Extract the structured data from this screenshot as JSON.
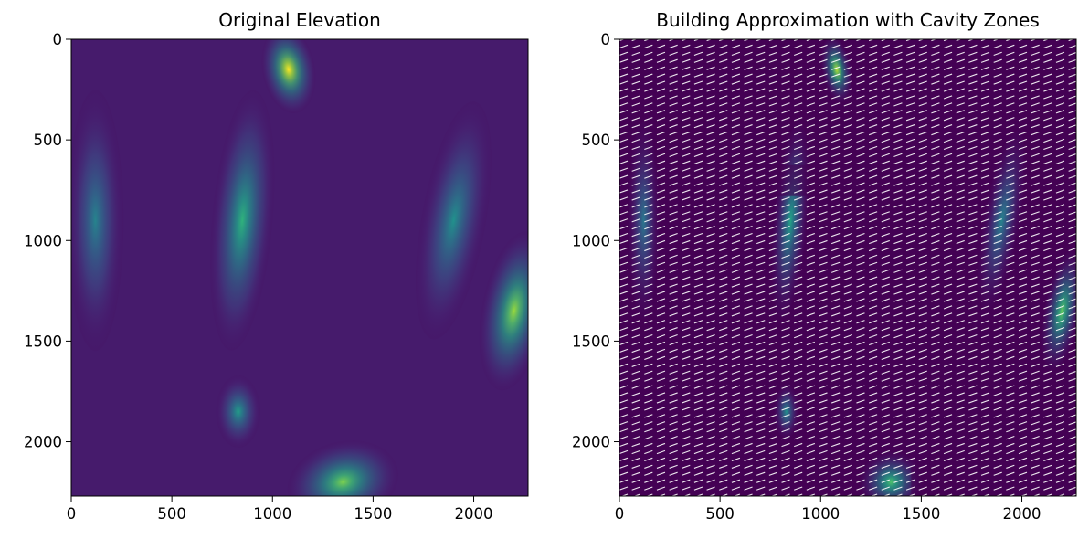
{
  "chart_data": [
    {
      "type": "heatmap",
      "title": "Original Elevation",
      "colormap": "viridis",
      "xlim": [
        0,
        2270
      ],
      "ylim": [
        2270,
        0
      ],
      "xticks": [
        0,
        500,
        1000,
        1500,
        2000
      ],
      "yticks": [
        0,
        500,
        1000,
        1500,
        2000
      ],
      "xtick_labels": [
        "0",
        "500",
        "1000",
        "1500",
        "2000"
      ],
      "ytick_labels": [
        "0",
        "500",
        "1000",
        "1500",
        "2000"
      ],
      "ridges": [
        {
          "x": 1080,
          "y": 150,
          "peak": 1.0
        },
        {
          "x": 120,
          "y": 900,
          "peak": 0.45
        },
        {
          "x": 850,
          "y": 900,
          "peak": 0.65
        },
        {
          "x": 1900,
          "y": 900,
          "peak": 0.5
        },
        {
          "x": 2200,
          "y": 1350,
          "peak": 0.85
        },
        {
          "x": 1350,
          "y": 2200,
          "peak": 0.8
        },
        {
          "x": 830,
          "y": 1850,
          "peak": 0.55
        }
      ]
    },
    {
      "type": "heatmap",
      "title": "Building Approximation with Cavity Zones",
      "colormap": "viridis",
      "overlay": "quiver",
      "arrow_color": "#ffffff",
      "xlim": [
        0,
        2270
      ],
      "ylim": [
        2270,
        0
      ],
      "xticks": [
        0,
        500,
        1000,
        1500,
        2000
      ],
      "yticks": [
        0,
        500,
        1000,
        1500,
        2000
      ],
      "xtick_labels": [
        "0",
        "500",
        "1000",
        "1500",
        "2000"
      ],
      "ytick_labels": [
        "0",
        "500",
        "1000",
        "1500",
        "2000"
      ]
    }
  ],
  "colors": {
    "viridis_low": "#440154",
    "viridis_mid": "#21918c",
    "viridis_high": "#fde725"
  }
}
